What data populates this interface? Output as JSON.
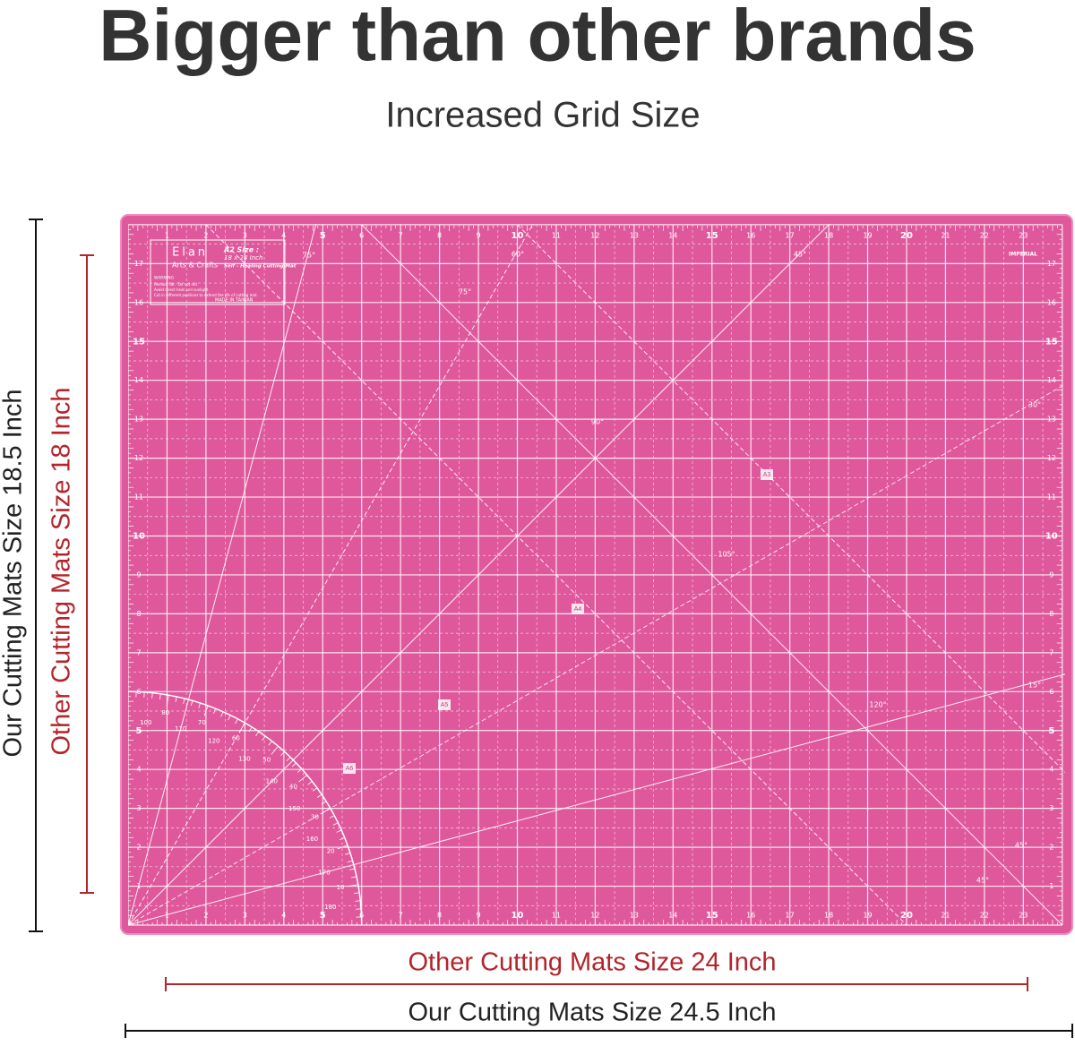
{
  "header": {
    "title": "Bigger than other brands",
    "subtitle": "Increased Grid Size"
  },
  "dimensions": {
    "our_height": "Our Cutting Mats Size 18.5 Inch",
    "other_height": "Other Cutting Mats Size 18 Inch",
    "other_width": "Other Cutting Mats Size 24 Inch",
    "our_width": "Our Cutting Mats Size 24.5 Inch"
  },
  "mat": {
    "brand": "Elan",
    "brand_sub": "Arts & Crafts",
    "size_label": "A2 Size :",
    "size": "18 x 24 Inch",
    "product": "Self - Healing Cutting Mat",
    "warning": "WARNING",
    "notes": [
      "Remain flat - Do not roll.",
      "Avoid direct heat and sunlight.",
      "Cut in different positions to extend the life of cutting mat."
    ],
    "origin": "MADE IN TAIWAN",
    "unit": "IMPERIAL",
    "paper_sizes": [
      "A3",
      "A4",
      "A5",
      "A6"
    ],
    "angles": [
      "75°",
      "60°",
      "45°",
      "30°",
      "15°",
      "75°",
      "90°",
      "105°",
      "120°",
      "45°",
      "45°"
    ],
    "ruler_x": [
      1,
      2,
      3,
      4,
      5,
      6,
      7,
      8,
      9,
      10,
      11,
      12,
      13,
      14,
      15,
      16,
      17,
      18,
      19,
      20,
      21,
      22,
      23
    ],
    "ruler_y": [
      1,
      2,
      3,
      4,
      5,
      6,
      7,
      8,
      9,
      10,
      11,
      12,
      13,
      14,
      15,
      16,
      17
    ],
    "protractor_outer": [
      10,
      20,
      30,
      40,
      50,
      60,
      70,
      80
    ],
    "protractor_inner": [
      100,
      110,
      120,
      130,
      140,
      150,
      160,
      170,
      180
    ]
  }
}
